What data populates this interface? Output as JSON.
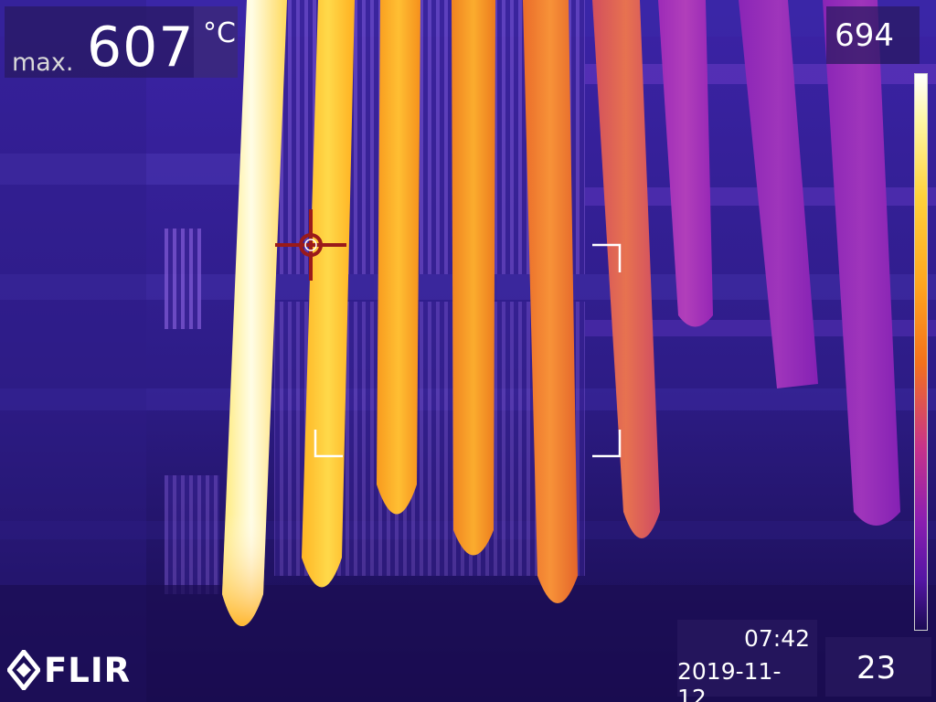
{
  "readout": {
    "max_label": "max.",
    "max_value": "607",
    "unit": "°C"
  },
  "color_scale": {
    "max": "694",
    "min": "23",
    "palette": "iron"
  },
  "timestamp": {
    "time": "07:42",
    "date": "2019-11-12"
  },
  "brand": {
    "logo_text": "FLIR"
  },
  "icons": {
    "spot_meter": "crosshair-icon",
    "measurement_area": "corner-brackets-icon",
    "brand_mark": "flir-diamond-icon"
  },
  "colors": {
    "hottest": "#ffffff",
    "hot": "#ffc93a",
    "warm": "#f27a23",
    "mid": "#c13f8d",
    "cool": "#7e22b0",
    "background": "#2a1778",
    "spot_meter": "#9a1a1a"
  }
}
